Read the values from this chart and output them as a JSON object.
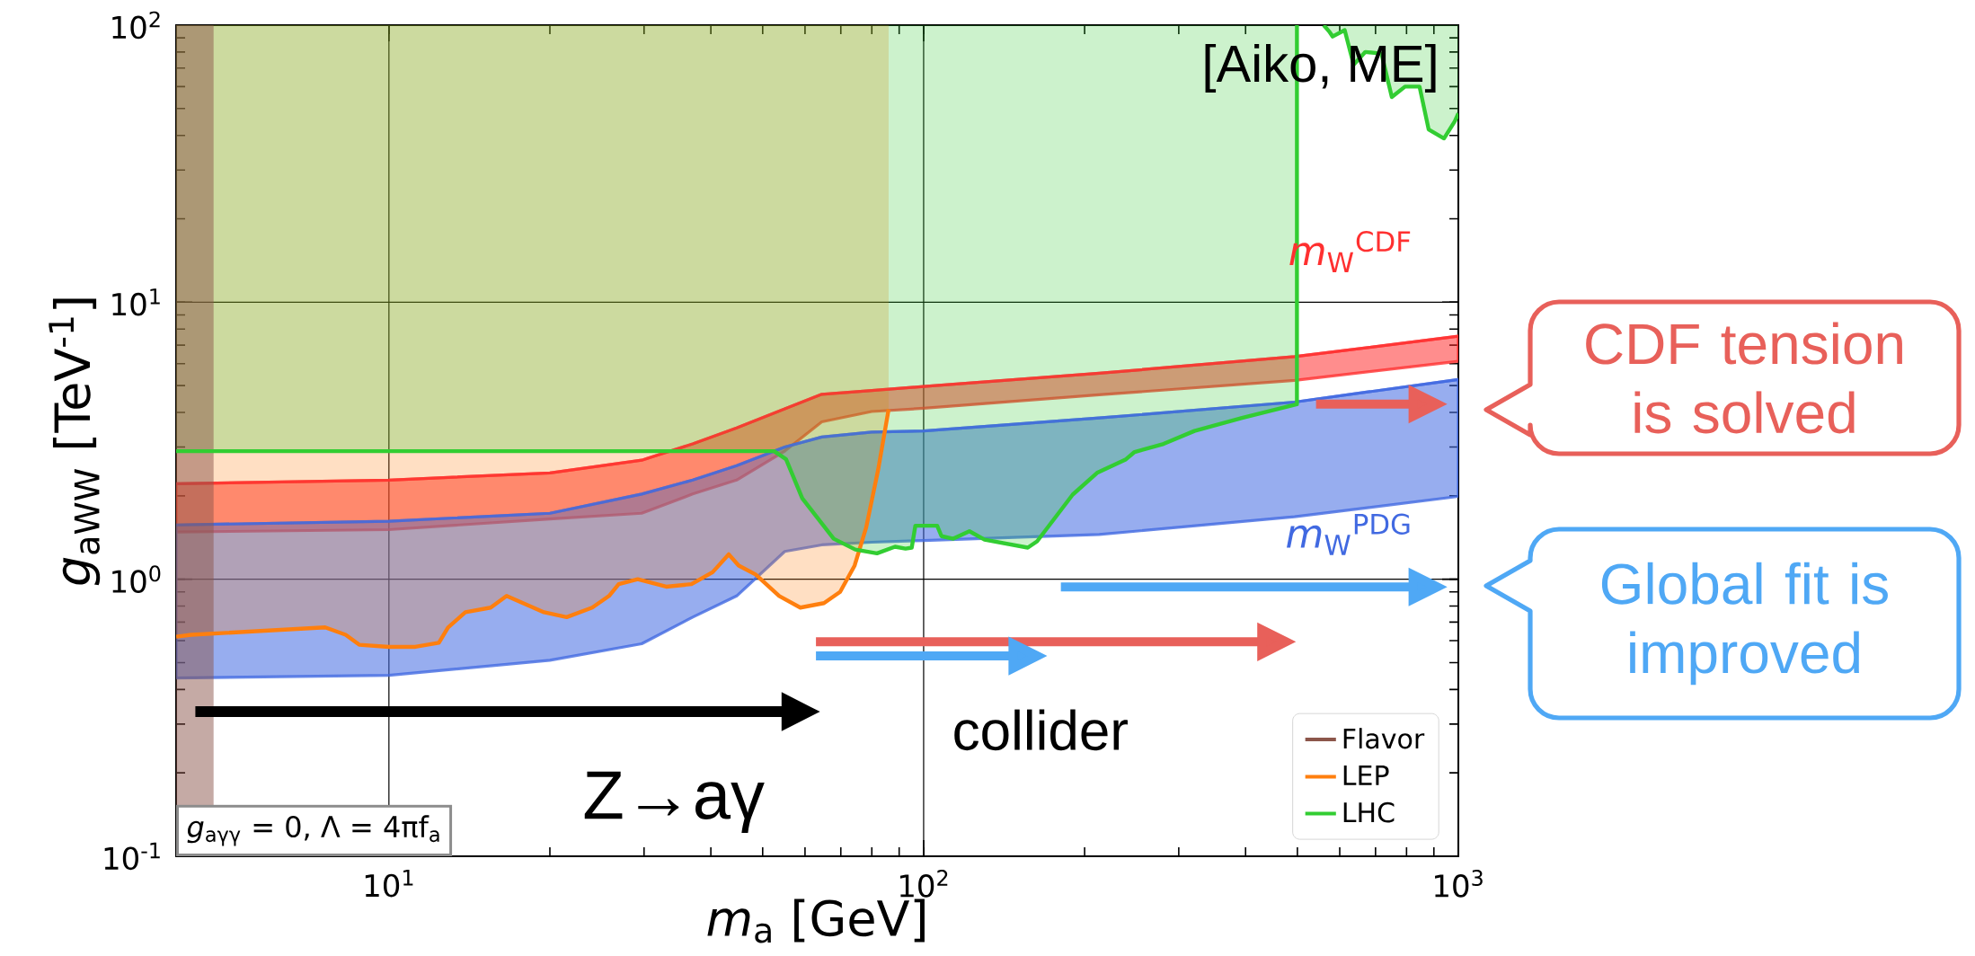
{
  "chart_data": {
    "type": "line",
    "xlabel": "*m*$_{a}$ [GeV]",
    "ylabel": "*g*$_{aWW}$ [TeV$^{-1}$]",
    "log": "xy",
    "grid": true,
    "legend": "bottom right",
    "xlim": [
      4,
      1000
    ],
    "ylim": [
      0.1,
      100
    ],
    "xticks": [
      {
        "value": 10,
        "label": "10$^{1}$"
      },
      {
        "value": 100,
        "label": "10$^{2}$"
      },
      {
        "value": 1000,
        "label": "10$^{3}$"
      }
    ],
    "yticks": [
      {
        "value": 0.1,
        "label": "10$^{-1}$"
      },
      {
        "value": 1,
        "label": "10$^{0}$"
      },
      {
        "value": 10,
        "label": "10$^{1}$"
      },
      {
        "value": 100,
        "label": "10$^{2}$"
      }
    ],
    "series": [
      {
        "name": "Flavor",
        "type": "area",
        "color": "#8c564b",
        "x": [
          4,
          4.7
        ],
        "values": [
          100,
          100
        ]
      },
      {
        "name": "LEP",
        "color": "#ff7f0e",
        "x": [
          4,
          4.27,
          7.6,
          8.3,
          8.8,
          10,
          11.2,
          12.4,
          12.9,
          13.9,
          15.5,
          16.6,
          19.5,
          21.5,
          24,
          25.8,
          26.9,
          29.2,
          33,
          36.8,
          40.3,
          43.2,
          45.1,
          48.5,
          53.7,
          58.8,
          65.1,
          69.8,
          74.3,
          78.1,
          82.2,
          86
        ],
        "values": [
          0.62,
          0.63,
          0.67,
          0.63,
          0.58,
          0.57,
          0.57,
          0.59,
          0.67,
          0.76,
          0.79,
          0.87,
          0.76,
          0.73,
          0.79,
          0.87,
          0.96,
          1.0,
          0.94,
          0.96,
          1.06,
          1.23,
          1.12,
          1.04,
          0.87,
          0.79,
          0.82,
          0.9,
          1.12,
          1.54,
          2.48,
          4.1
        ],
        "lower": [
          0.62,
          0.63,
          0.67,
          0.63,
          0.58,
          0.57,
          0.57,
          0.59,
          0.67,
          0.76,
          0.79,
          0.87,
          0.76,
          0.73,
          0.79,
          0.87,
          0.96,
          1.0,
          0.94,
          0.96,
          1.06,
          1.23,
          1.12,
          1.04,
          0.87,
          0.79,
          0.82,
          0.9,
          1.12,
          1.54,
          2.48,
          4.1
        ],
        "upper": [
          100,
          100,
          100,
          100,
          100,
          100,
          100,
          100,
          100,
          100,
          100,
          100,
          100,
          100,
          100,
          100,
          100,
          100,
          100,
          100,
          100,
          100,
          100,
          100,
          100,
          100,
          100,
          100,
          100,
          100,
          100,
          100
        ]
      },
      {
        "name": "LHC",
        "color": "#32cd32",
        "x": [
          4,
          52.5,
          55.3,
          59.3,
          67.9,
          74.5,
          81.8,
          88.4,
          92.5,
          95,
          96.5,
          106,
          108,
          113.6,
          121.8,
          130,
          156.6,
          163,
          190,
          211,
          239,
          248,
          281,
          321,
          394,
          499,
          499
        ],
        "values": [
          2.9,
          2.9,
          2.71,
          1.96,
          1.4,
          1.28,
          1.24,
          1.31,
          1.29,
          1.3,
          1.56,
          1.56,
          1.43,
          1.4,
          1.49,
          1.39,
          1.3,
          1.37,
          2.02,
          2.42,
          2.71,
          2.88,
          3.08,
          3.43,
          3.82,
          4.28,
          100
        ],
        "lower": [
          2.9,
          2.9,
          2.71,
          1.96,
          1.4,
          1.28,
          1.24,
          1.31,
          1.29,
          1.3,
          1.56,
          1.56,
          1.43,
          1.4,
          1.49,
          1.39,
          1.3,
          1.37,
          2.02,
          2.42,
          2.71,
          2.88,
          3.08,
          3.43,
          3.82,
          4.28,
          100
        ],
        "upper": [
          100,
          100,
          100,
          100,
          100,
          100,
          100,
          100,
          100,
          100,
          100,
          100,
          100,
          100,
          100,
          100,
          100,
          100,
          100,
          100,
          100,
          100,
          100,
          100,
          100,
          100,
          100
        ]
      },
      {
        "color": "#32cd32",
        "x": [
          560,
          573,
          582,
          613,
          637,
          670,
          718,
          751,
          795,
          846,
          880,
          940,
          985,
          1000
        ],
        "values": [
          100,
          95,
          91,
          96,
          72,
          80,
          79,
          55,
          60,
          60,
          42,
          39,
          45,
          48
        ],
        "lower": [
          100,
          95,
          91,
          96,
          72,
          80,
          79,
          55,
          60,
          60,
          42,
          39,
          45,
          48
        ],
        "upper": [
          100,
          100,
          100,
          100,
          100,
          100,
          100,
          100,
          100,
          100,
          100,
          100,
          100,
          100
        ]
      },
      {
        "name": "*m*$_{W}$$^{CDF}$",
        "color": "#ff3030",
        "x": [
          4,
          10,
          20,
          29.7,
          37,
          44.7,
          55,
          64.5,
          80,
          100,
          213,
          494,
          1000
        ],
        "values": [
          2.21,
          2.28,
          2.42,
          2.69,
          3.08,
          3.52,
          4.12,
          4.65,
          4.8,
          4.96,
          5.54,
          6.36,
          7.54
        ],
        "lower": [
          1.48,
          1.51,
          1.65,
          1.73,
          2.03,
          2.28,
          2.9,
          3.7,
          4.03,
          4.14,
          4.63,
          5.22,
          6.12
        ],
        "upper": [
          2.21,
          2.28,
          2.42,
          2.69,
          3.08,
          3.52,
          4.12,
          4.65,
          4.8,
          4.96,
          5.54,
          6.36,
          7.54
        ]
      },
      {
        "name": "*m*$_{W}$$^{PDG}$",
        "color": "#4169e1",
        "x": [
          4,
          10,
          20,
          29.7,
          37,
          44.7,
          55,
          64.5,
          80,
          100,
          213,
          494,
          1000
        ],
        "values": [
          1.57,
          1.62,
          1.73,
          2.03,
          2.28,
          2.57,
          3.0,
          3.26,
          3.4,
          3.43,
          3.82,
          4.36,
          5.26
        ],
        "lower": [
          0.44,
          0.45,
          0.51,
          0.585,
          0.73,
          0.87,
          1.26,
          1.33,
          1.36,
          1.38,
          1.45,
          1.68,
          1.99
        ],
        "upper": [
          1.57,
          1.62,
          1.73,
          2.03,
          2.28,
          2.57,
          3.0,
          3.26,
          3.4,
          3.43,
          3.82,
          4.36,
          5.26
        ]
      }
    ],
    "annotations": [
      "[Aiko, ME]",
      "*g*$_{aγγ}$ = 0, Λ = 4πf$_{a}$",
      "Z→aγ",
      "collider",
      "CDF tension is solved",
      "Global fit is improved"
    ]
  }
}
